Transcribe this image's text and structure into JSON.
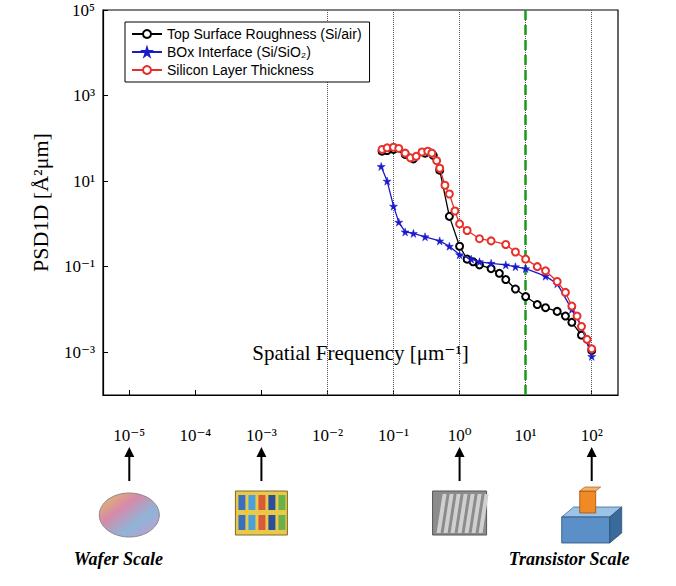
{
  "chart_data": {
    "type": "line",
    "xlabel": "Spatial Frequency [μm⁻¹]",
    "ylabel": "PSD1D [Å²μm]",
    "log": true,
    "grid": "x",
    "legend": "upper left",
    "xlim": [
      4e-06,
      250
    ],
    "ylim": [
      0.0001,
      100000
    ],
    "xticks": [
      {
        "value": 1e-05,
        "label": "10⁻⁵"
      },
      {
        "value": 0.0001,
        "label": "10⁻⁴"
      },
      {
        "value": 0.001,
        "label": "10⁻³"
      },
      {
        "value": 0.01,
        "label": "10⁻²"
      },
      {
        "value": 0.1,
        "label": "10⁻¹"
      },
      {
        "value": 1,
        "label": "10⁰"
      },
      {
        "value": 10,
        "label": "10¹"
      },
      {
        "value": 100,
        "label": "10²"
      }
    ],
    "yticks": [
      {
        "value": 100000,
        "label": "10⁵"
      },
      {
        "value": 1000,
        "label": "10³"
      },
      {
        "value": 10,
        "label": "10¹"
      },
      {
        "value": 0.1,
        "label": "10⁻¹"
      },
      {
        "value": 0.001,
        "label": "10⁻³"
      }
    ],
    "series": [
      {
        "name": "Top Surface Roughness (Si/air)",
        "color": "#000000",
        "marker": "circle",
        "line_style": "solid",
        "x": [
          0.067,
          0.08,
          0.1,
          0.15,
          0.2,
          0.3,
          0.4,
          0.5,
          0.7,
          1,
          1.3,
          1.6,
          2,
          3,
          4,
          5,
          7,
          10,
          15,
          20,
          30,
          40,
          50,
          70,
          100
        ],
        "values": [
          50,
          52,
          55,
          42,
          33,
          45,
          40,
          18,
          1.5,
          0.3,
          0.15,
          0.13,
          0.11,
          0.09,
          0.07,
          0.05,
          0.03,
          0.02,
          0.013,
          0.011,
          0.009,
          0.007,
          0.005,
          0.0025,
          0.0011
        ]
      },
      {
        "name": "BOx Interface (Si/SiO₂)",
        "color": "#1a1acc",
        "marker": "star",
        "line_style": "solid",
        "x": [
          0.065,
          0.08,
          0.1,
          0.12,
          0.15,
          0.2,
          0.3,
          0.5,
          0.7,
          1,
          1.5,
          2,
          3,
          5,
          7,
          10,
          20,
          30,
          50,
          70,
          100
        ],
        "values": [
          22,
          10,
          2.6,
          1.1,
          0.65,
          0.6,
          0.5,
          0.4,
          0.3,
          0.19,
          0.15,
          0.13,
          0.12,
          0.11,
          0.1,
          0.09,
          0.06,
          0.04,
          0.01,
          0.004,
          0.0008
        ]
      },
      {
        "name": "Silicon Layer Thickness",
        "color": "#e8302a",
        "marker": "circle",
        "line_style": "solid",
        "x": [
          0.067,
          0.08,
          0.1,
          0.12,
          0.15,
          0.18,
          0.22,
          0.27,
          0.33,
          0.38,
          0.45,
          0.5,
          0.6,
          0.7,
          0.85,
          1,
          1.3,
          2,
          3,
          5,
          7,
          10,
          15,
          20,
          30,
          40,
          50,
          60,
          70,
          85,
          100
        ],
        "values": [
          55,
          60,
          62,
          58,
          45,
          35,
          38,
          48,
          50,
          45,
          30,
          20,
          8,
          5,
          2,
          1,
          0.7,
          0.45,
          0.4,
          0.33,
          0.22,
          0.15,
          0.1,
          0.08,
          0.045,
          0.025,
          0.012,
          0.007,
          0.004,
          0.002,
          0.0012
        ]
      }
    ],
    "vline": {
      "x": 10,
      "color": "#1a9a1a",
      "line_style": "dashed"
    },
    "scale_markers": [
      {
        "x": 1e-05,
        "label": "Wafer Scale"
      },
      {
        "x": 0.001
      },
      {
        "x": 1
      },
      {
        "x": 100,
        "label": "Transistor Scale"
      }
    ]
  }
}
